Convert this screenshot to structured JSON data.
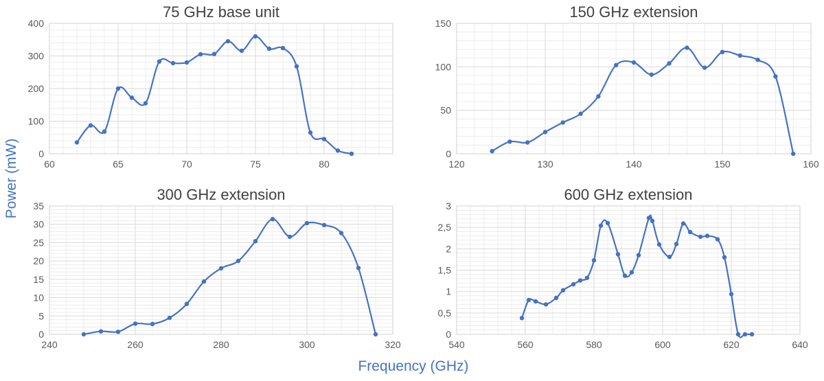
{
  "figure": {
    "ylabel": "Power (mW)",
    "xlabel": "Frequency (GHz)"
  },
  "colors": {
    "series": "#4472c4",
    "grid": "#d9d9d9",
    "text": "#595959"
  },
  "chart_data": [
    {
      "type": "line",
      "title": "75 GHz base unit",
      "xlim": [
        60,
        85
      ],
      "ylim": [
        0,
        400
      ],
      "xticks": [
        60,
        65,
        70,
        75,
        80,
        ""
      ],
      "yticks": [
        0,
        100,
        200,
        300,
        400
      ],
      "grid": true,
      "x": [
        62,
        63,
        64,
        65,
        66,
        67,
        68,
        69,
        70,
        71,
        72,
        73,
        74,
        75,
        76,
        77,
        78,
        79,
        80,
        81,
        82
      ],
      "y": [
        35,
        87,
        68,
        200,
        172,
        155,
        283,
        278,
        280,
        305,
        306,
        345,
        316,
        360,
        322,
        324,
        268,
        65,
        45,
        10,
        0
      ]
    },
    {
      "type": "line",
      "title": "150 GHz extension",
      "xlim": [
        120,
        160
      ],
      "ylim": [
        0,
        150
      ],
      "xticks": [
        120,
        130,
        140,
        150,
        160
      ],
      "yticks": [
        0,
        50,
        100,
        150
      ],
      "grid": true,
      "x": [
        124,
        126,
        128,
        130,
        132,
        134,
        136,
        138,
        140,
        142,
        144,
        146,
        148,
        150,
        152,
        154,
        156,
        158
      ],
      "y": [
        3,
        14,
        13,
        25,
        36,
        46,
        66,
        102,
        105,
        91,
        104,
        122,
        99,
        117,
        113,
        108,
        89,
        0
      ]
    },
    {
      "type": "line",
      "title": "300 GHz extension",
      "xlim": [
        240,
        320
      ],
      "ylim": [
        0,
        35
      ],
      "xticks": [
        240,
        260,
        280,
        300,
        320
      ],
      "yticks": [
        0,
        5,
        10,
        15,
        20,
        25,
        30,
        35
      ],
      "grid": true,
      "x": [
        248,
        252,
        256,
        260,
        264,
        268,
        272,
        276,
        280,
        284,
        288,
        292,
        296,
        300,
        304,
        308,
        312,
        316
      ],
      "y": [
        0,
        0.8,
        0.7,
        2.9,
        2.8,
        4.5,
        8.3,
        14.4,
        18.0,
        20.0,
        25.4,
        31.4,
        26.6,
        30.3,
        29.8,
        27.6,
        18.1,
        0
      ]
    },
    {
      "type": "line",
      "title": "600 GHz extension",
      "xlim": [
        540,
        640
      ],
      "ylim": [
        0,
        3
      ],
      "xticks": [
        540,
        560,
        580,
        600,
        620,
        640
      ],
      "yticks": [
        "0",
        "0,5",
        "1",
        "1,5",
        "2",
        "2,5",
        "3"
      ],
      "grid": true,
      "x": [
        559,
        561,
        563,
        566,
        569,
        571,
        574,
        576,
        578,
        580,
        582,
        584,
        587,
        589,
        591,
        593,
        596,
        597,
        599,
        602,
        604,
        606,
        608,
        611,
        613,
        616,
        618,
        620,
        622,
        624,
        626
      ],
      "y": [
        0.38,
        0.8,
        0.77,
        0.7,
        0.85,
        1.03,
        1.17,
        1.26,
        1.32,
        1.73,
        2.54,
        2.6,
        1.87,
        1.37,
        1.45,
        1.85,
        2.72,
        2.65,
        2.1,
        1.81,
        2.11,
        2.59,
        2.39,
        2.28,
        2.3,
        2.22,
        1.8,
        0.94,
        0,
        0,
        0
      ]
    }
  ]
}
